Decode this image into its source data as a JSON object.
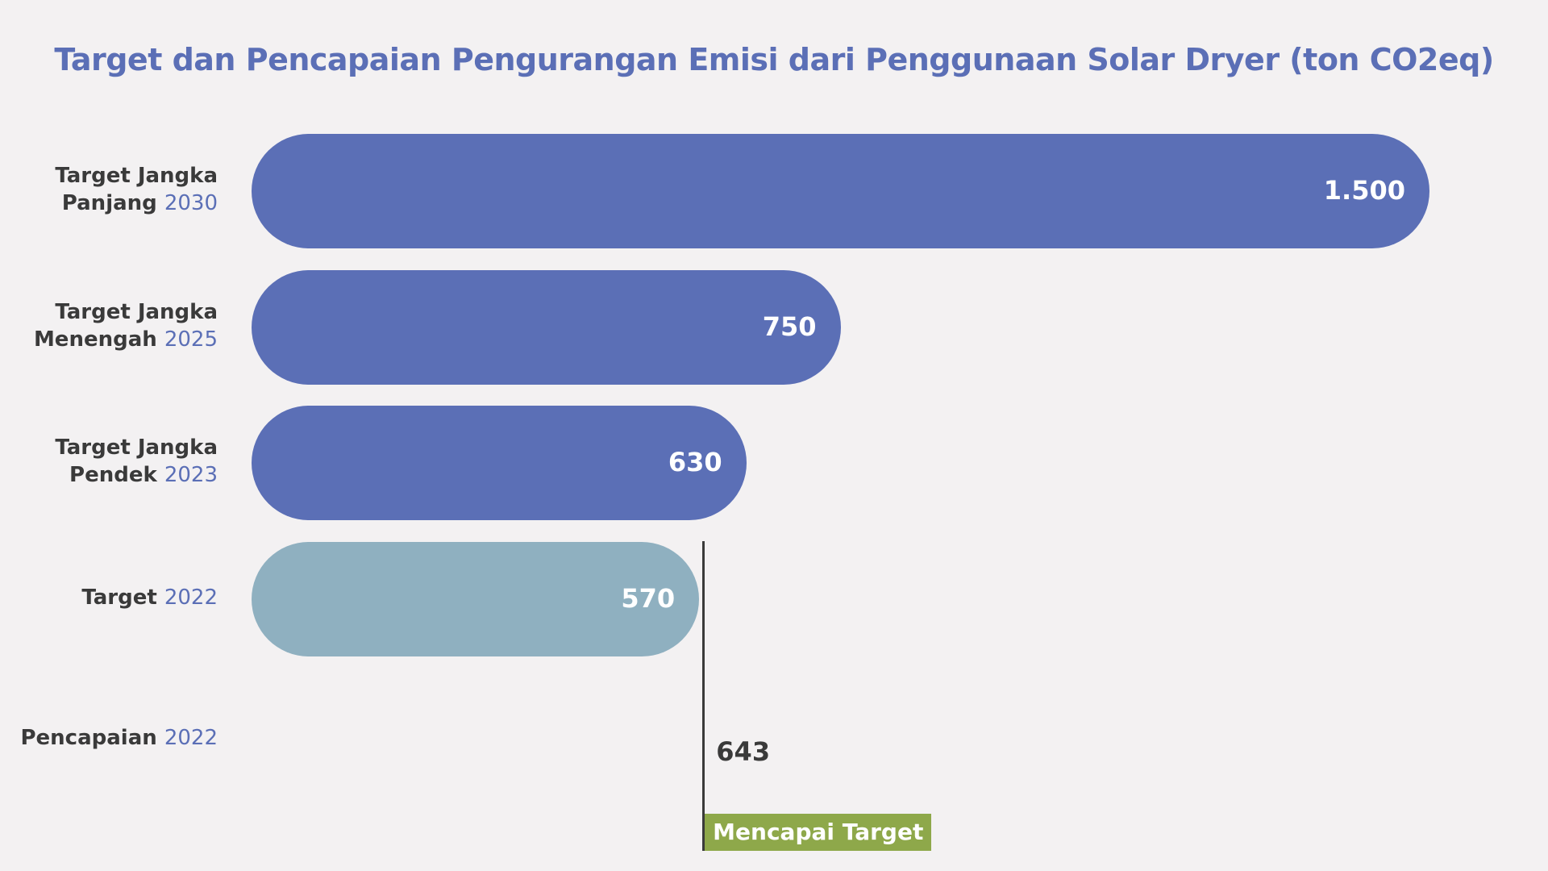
{
  "chart_data": {
    "type": "bar",
    "orientation": "horizontal",
    "title": "Target dan Pencapaian Pengurangan Emisi dari Penggunaan Solar Dryer (ton CO2eq)",
    "categories": [
      {
        "label": "Target Jangka Panjang",
        "year": "2030",
        "value": 1500,
        "value_label": "1.500",
        "color": "#5b6fb6"
      },
      {
        "label": "Target Jangka Menengah",
        "year": "2025",
        "value": 750,
        "value_label": "750",
        "color": "#5b6fb6"
      },
      {
        "label": "Target Jangka Pendek",
        "year": "2023",
        "value": 630,
        "value_label": "630",
        "color": "#5b6fb6"
      },
      {
        "label": "Target",
        "year": "2022",
        "value": 570,
        "value_label": "570",
        "color": "#8fb0c0"
      },
      {
        "label": "Pencapaian",
        "year": "2022",
        "value": 643,
        "value_label": "643",
        "color": null
      }
    ],
    "reference_line": {
      "value": 570,
      "label": "Mencapai Target",
      "color": "#8ea84a"
    },
    "grid": false,
    "legend": "none"
  }
}
